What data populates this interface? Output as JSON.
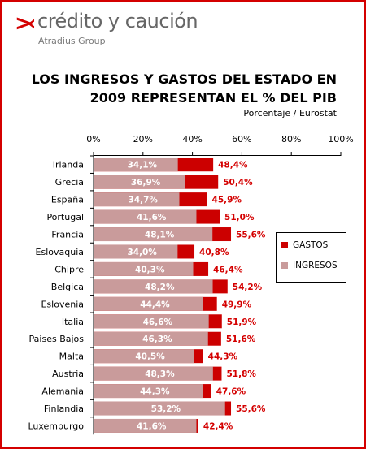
{
  "brand": {
    "mark": ">‹",
    "name": "crédito y caución",
    "sub": "Atradius Group"
  },
  "chart_data": {
    "type": "bar",
    "orientation": "horizontal",
    "title_line1": "LOS INGRESOS Y GASTOS DEL ESTADO EN",
    "title_line2": "2009 REPRESENTAN EL % DEL PIB",
    "subtitle": "Porcentaje / Eurostat",
    "xlim": [
      0,
      100
    ],
    "x_ticks": [
      "0%",
      "20%",
      "40%",
      "60%",
      "80%",
      "100%"
    ],
    "legend_placement": "right",
    "categories": [
      "Irlanda",
      "Grecia",
      "España",
      "Portugal",
      "Francia",
      "Eslovaquia",
      "Chipre",
      "Belgica",
      "Eslovenia",
      "Italia",
      "Paises Bajos",
      "Malta",
      "Austria",
      "Alemania",
      "Finlandia",
      "Luxemburgo"
    ],
    "series": [
      {
        "name": "GASTOS",
        "color": "#cc0000",
        "values": [
          48.4,
          50.4,
          45.9,
          51.0,
          55.6,
          40.8,
          46.4,
          54.2,
          49.9,
          51.9,
          51.6,
          44.3,
          51.8,
          47.6,
          55.6,
          42.4
        ],
        "labels": [
          "48,4%",
          "50,4%",
          "45,9%",
          "51,0%",
          "55,6%",
          "40,8%",
          "46,4%",
          "54,2%",
          "49,9%",
          "51,9%",
          "51,6%",
          "44,3%",
          "51,8%",
          "47,6%",
          "55,6%",
          "42,4%"
        ]
      },
      {
        "name": "INGRESOS",
        "color": "#c99b9b",
        "values": [
          34.1,
          36.9,
          34.7,
          41.6,
          48.1,
          34.0,
          40.3,
          48.2,
          44.4,
          46.6,
          46.3,
          40.5,
          48.3,
          44.3,
          53.2,
          41.6
        ],
        "labels": [
          "34,1%",
          "36,9%",
          "34,7%",
          "41,6%",
          "48,1%",
          "34,0%",
          "40,3%",
          "48,2%",
          "44,4%",
          "46,6%",
          "46,3%",
          "40,5%",
          "48,3%",
          "44,3%",
          "53,2%",
          "41,6%"
        ]
      }
    ]
  }
}
